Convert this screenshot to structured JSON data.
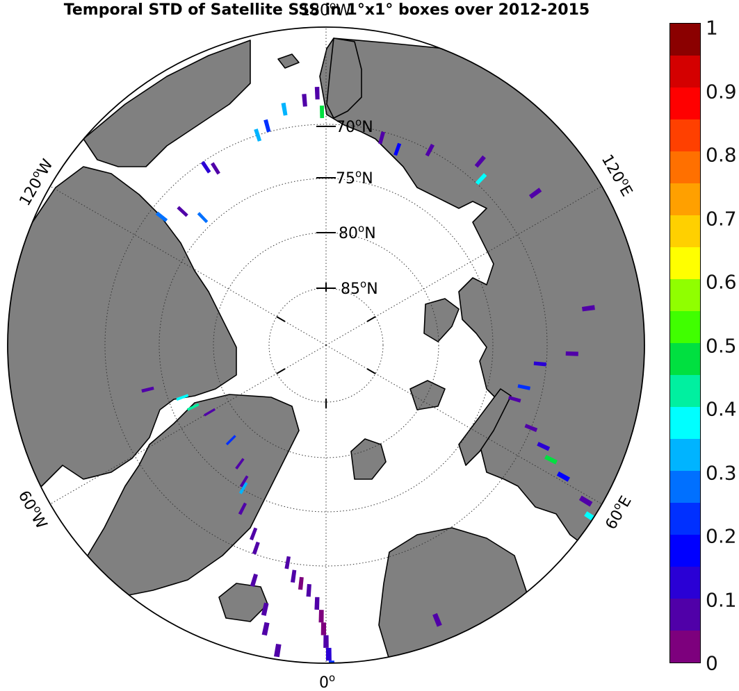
{
  "title": "Temporal STD of Satellite SSS in 1°x1° boxes over 2012-2015",
  "map": {
    "projection": "north polar stereographic",
    "land_color": "#808080",
    "ocean_color": "#ffffff",
    "lat_labels": [
      "70",
      "75",
      "80",
      "85"
    ],
    "lat_suffix": "N",
    "lon_labels": {
      "top": "180",
      "top_suffix": "W",
      "upper_left": "120",
      "upper_left_suffix": "W",
      "upper_right": "120",
      "upper_right_suffix": "E",
      "lower_left": "60",
      "lower_left_suffix": "W",
      "lower_right": "60",
      "lower_right_suffix": "E",
      "bottom": "0"
    },
    "degree_symbol": "o"
  },
  "colorbar": {
    "tick_labels": [
      "0",
      "0.1",
      "0.2",
      "0.3",
      "0.4",
      "0.5",
      "0.6",
      "0.7",
      "0.8",
      "0.9",
      "1"
    ],
    "colors": [
      "#7d007d",
      "#5000a8",
      "#2a00d5",
      "#0000ff",
      "#0030ff",
      "#0070ff",
      "#00b4ff",
      "#00ffff",
      "#00f0a0",
      "#00e040",
      "#40ff00",
      "#90ff00",
      "#ffff00",
      "#ffd000",
      "#ffa000",
      "#ff7000",
      "#ff4000",
      "#ff0000",
      "#d40000",
      "#8b0000"
    ]
  },
  "chart_data": {
    "type": "heatmap",
    "title": "Temporal STD of Satellite SSS in 1°x1° boxes over 2012-2015",
    "value_range": [
      0,
      1
    ],
    "colorbar_ticks": [
      0,
      0.1,
      0.2,
      0.3,
      0.4,
      0.5,
      0.6,
      0.7,
      0.8,
      0.9,
      1
    ],
    "cells": [
      {
        "lat": 72.0,
        "lon": 10.0,
        "value": 0.05
      },
      {
        "lat": 71.0,
        "lon": 8.0,
        "value": 0.05
      },
      {
        "lat": 70.5,
        "lon": 6.0,
        "value": 0.03
      },
      {
        "lat": 70.0,
        "lon": 4.0,
        "value": 0.06
      },
      {
        "lat": 69.0,
        "lon": 2.0,
        "value": 0.05
      },
      {
        "lat": 68.0,
        "lon": 1.0,
        "value": 0.04
      },
      {
        "lat": 67.0,
        "lon": 0.5,
        "value": 0.03
      },
      {
        "lat": 66.0,
        "lon": 0.0,
        "value": 0.06
      },
      {
        "lat": 65.0,
        "lon": -0.5,
        "value": 0.1
      },
      {
        "lat": 64.0,
        "lon": -1.0,
        "value": 0.2
      },
      {
        "lat": 63.0,
        "lon": -2.5,
        "value": 0.05
      },
      {
        "lat": 62.5,
        "lon": -5.0,
        "value": 0.05
      },
      {
        "lat": 62.0,
        "lon": -7.0,
        "value": 0.1
      },
      {
        "lat": 61.5,
        "lon": -9.0,
        "value": 0.05
      },
      {
        "lat": 61.0,
        "lon": -11.0,
        "value": 0.15
      },
      {
        "lat": 62.0,
        "lon": -15.0,
        "value": 0.05
      },
      {
        "lat": 66.0,
        "lon": -22.0,
        "value": 0.05
      },
      {
        "lat": 65.0,
        "lon": 9.0,
        "value": 0.05
      },
      {
        "lat": 66.5,
        "lon": 12.0,
        "value": 0.05
      },
      {
        "lat": 68.0,
        "lon": 13.0,
        "value": 0.05
      },
      {
        "lat": 70.0,
        "lon": 17.0,
        "value": 0.05
      },
      {
        "lat": 72.5,
        "lon": 19.0,
        "value": 0.06
      },
      {
        "lat": 73.5,
        "lon": 21.0,
        "value": 0.05
      },
      {
        "lat": 75.0,
        "lon": 27.0,
        "value": 0.05
      },
      {
        "lat": 76.5,
        "lon": 30.0,
        "value": 0.3
      },
      {
        "lat": 77.0,
        "lon": 31.0,
        "value": 0.05
      },
      {
        "lat": 78.0,
        "lon": 36.0,
        "value": 0.05
      },
      {
        "lat": 79.0,
        "lon": 45.0,
        "value": 0.2
      },
      {
        "lat": 79.0,
        "lon": 60.0,
        "value": 0.05
      },
      {
        "lat": 78.0,
        "lon": 65.0,
        "value": 0.4
      },
      {
        "lat": 77.5,
        "lon": 70.0,
        "value": 0.35
      },
      {
        "lat": 75.0,
        "lon": 76.0,
        "value": 0.05
      },
      {
        "lat": 73.0,
        "lon": 128.0,
        "value": 0.25
      },
      {
        "lat": 74.0,
        "lon": 133.0,
        "value": 0.05
      },
      {
        "lat": 75.5,
        "lon": 136.0,
        "value": 0.25
      },
      {
        "lat": 72.5,
        "lon": 146.0,
        "value": 0.1
      },
      {
        "lat": 73.0,
        "lon": 148.0,
        "value": 0.05
      },
      {
        "lat": 72.0,
        "lon": 162.0,
        "value": 0.3
      },
      {
        "lat": 71.5,
        "lon": 165.0,
        "value": 0.2
      },
      {
        "lat": 70.5,
        "lon": 170.0,
        "value": 0.3
      },
      {
        "lat": 70.0,
        "lon": 175.0,
        "value": 0.05
      },
      {
        "lat": 69.5,
        "lon": 178.0,
        "value": 0.05
      },
      {
        "lat": 71.0,
        "lon": 179.0,
        "value": 0.45
      },
      {
        "lat": 72.5,
        "lon": -165.0,
        "value": 0.05
      },
      {
        "lat": 73.0,
        "lon": -160.0,
        "value": 0.15
      },
      {
        "lat": 72.0,
        "lon": -152.0,
        "value": 0.05
      },
      {
        "lat": 70.5,
        "lon": -140.0,
        "value": 0.05
      },
      {
        "lat": 71.5,
        "lon": -137.0,
        "value": 0.35
      },
      {
        "lat": 69.0,
        "lon": -126.0,
        "value": 0.05
      },
      {
        "lat": 68.5,
        "lon": -98.0,
        "value": 0.05
      },
      {
        "lat": 70.0,
        "lon": -88.0,
        "value": 0.05
      },
      {
        "lat": 72.5,
        "lon": -85.0,
        "value": 0.1
      },
      {
        "lat": 73.5,
        "lon": -78.0,
        "value": 0.2
      },
      {
        "lat": 74.0,
        "lon": -74.0,
        "value": 0.05
      },
      {
        "lat": 72.0,
        "lon": -68.0,
        "value": 0.05
      },
      {
        "lat": 70.5,
        "lon": -65.0,
        "value": 0.1
      },
      {
        "lat": 69.5,
        "lon": -63.0,
        "value": 0.45
      },
      {
        "lat": 68.0,
        "lon": -61.0,
        "value": 0.15
      },
      {
        "lat": 65.5,
        "lon": -59.0,
        "value": 0.05
      },
      {
        "lat": 64.5,
        "lon": -57.0,
        "value": 0.35
      },
      {
        "lat": 63.5,
        "lon": -56.0,
        "value": 0.1
      }
    ]
  }
}
